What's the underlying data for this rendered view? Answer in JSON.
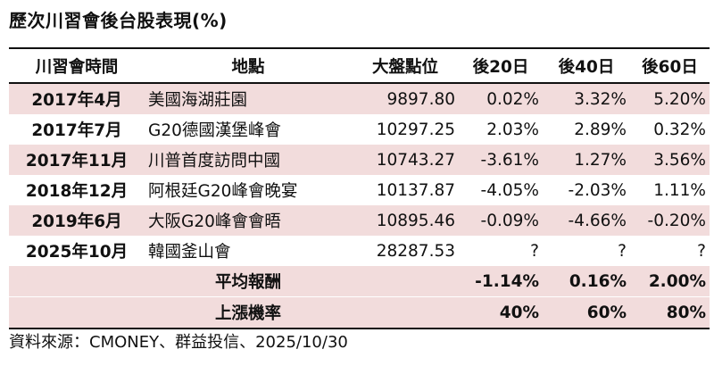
{
  "title": "歷次川習會後台股表現(%)",
  "table": {
    "headers": [
      "川習會時間",
      "地點",
      "大盤點位",
      "後20日",
      "後40日",
      "後60日"
    ],
    "rows": [
      {
        "date": "2017年4月",
        "location": "美國海湖莊園",
        "index": "9897.80",
        "d20": "0.02%",
        "d40": "3.32%",
        "d60": "5.20%"
      },
      {
        "date": "2017年7月",
        "location": "G20德國漢堡峰會",
        "index": "10297.25",
        "d20": "2.03%",
        "d40": "2.89%",
        "d60": "0.32%"
      },
      {
        "date": "2017年11月",
        "location": "川普首度訪問中國",
        "index": "10743.27",
        "d20": "-3.61%",
        "d40": "1.27%",
        "d60": "3.56%"
      },
      {
        "date": "2018年12月",
        "location": "阿根廷G20峰會晚宴",
        "index": "10137.87",
        "d20": "-4.05%",
        "d40": "-2.03%",
        "d60": "1.11%"
      },
      {
        "date": "2019年6月",
        "location": "大阪G20峰會會晤",
        "index": "10895.46",
        "d20": "-0.09%",
        "d40": "-4.66%",
        "d60": "-0.20%"
      },
      {
        "date": "2025年10月",
        "location": "韓國釜山會",
        "index": "28287.53",
        "d20": "?",
        "d40": "?",
        "d60": "?"
      }
    ],
    "summary": [
      {
        "label": "平均報酬",
        "d20": "-1.14%",
        "d40": "0.16%",
        "d60": "2.00%"
      },
      {
        "label": "上漲機率",
        "d20": "40%",
        "d40": "60%",
        "d60": "80%"
      }
    ]
  },
  "source": "資料來源：CMONEY、群益投信、2025/10/30",
  "colors": {
    "row_shade": "#f2dcdc",
    "rule": "#111111"
  }
}
